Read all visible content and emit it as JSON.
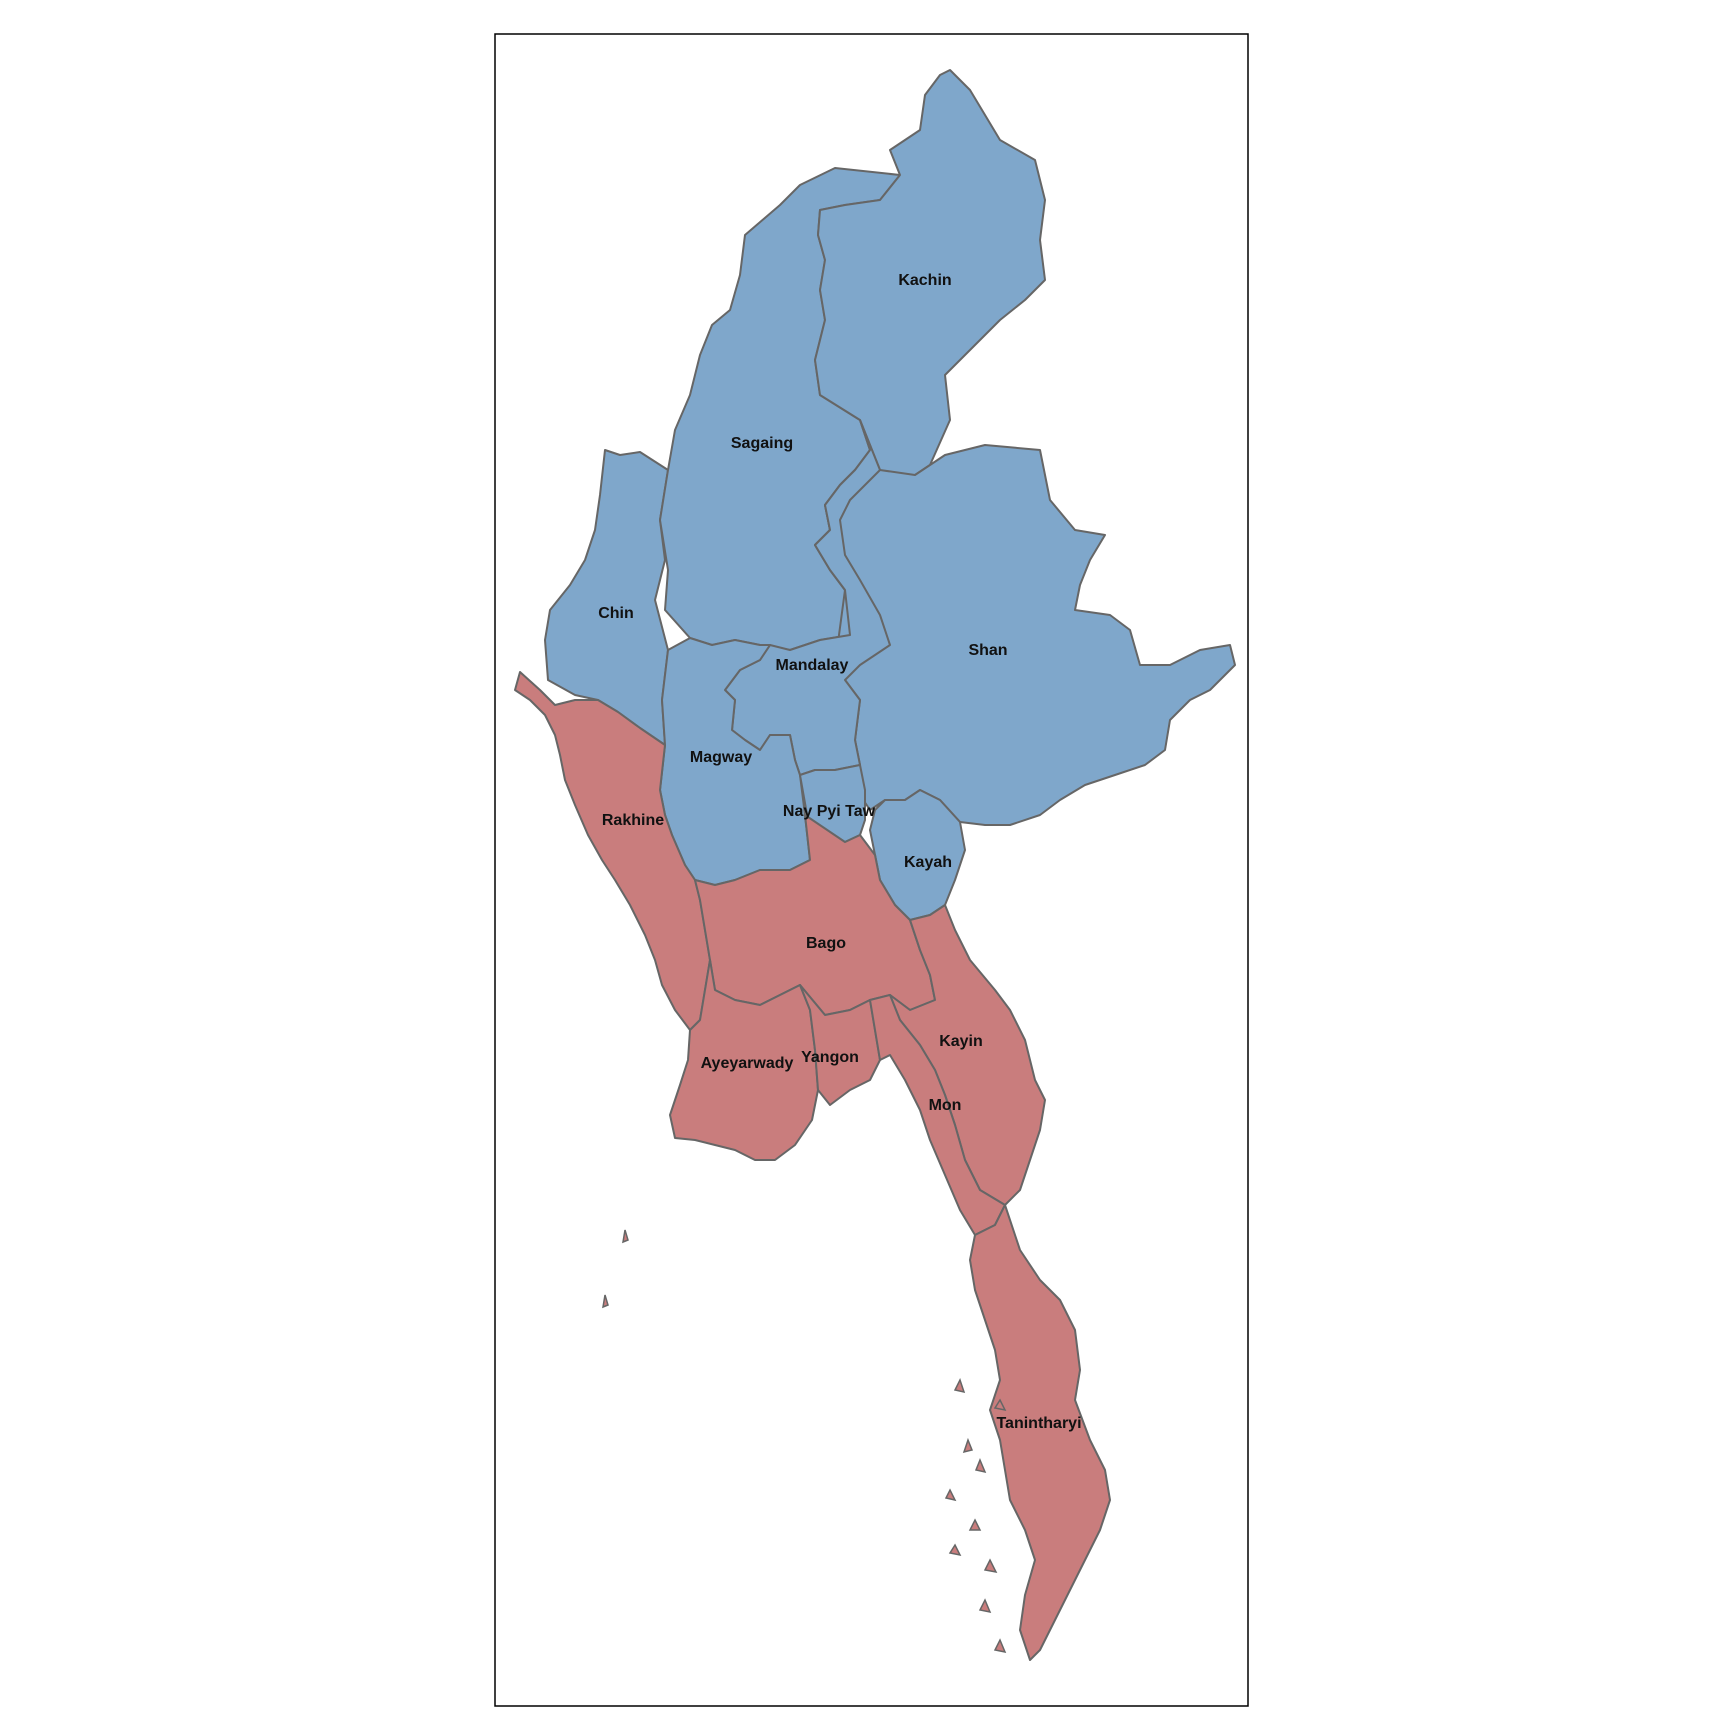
{
  "map": {
    "border_color": "#666666",
    "frame_color": "#000000",
    "group_colors": {
      "north": "#7fa7cb",
      "south": "#c97d7d"
    },
    "regions": [
      {
        "id": "kachin",
        "name": "Kachin",
        "group": "north"
      },
      {
        "id": "sagaing",
        "name": "Sagaing",
        "group": "north"
      },
      {
        "id": "chin",
        "name": "Chin",
        "group": "north"
      },
      {
        "id": "shan",
        "name": "Shan",
        "group": "north"
      },
      {
        "id": "mandalay",
        "name": "Mandalay",
        "group": "north"
      },
      {
        "id": "magway",
        "name": "Magway",
        "group": "north"
      },
      {
        "id": "nay-pyi-taw",
        "name": "Nay Pyi Taw",
        "group": "north"
      },
      {
        "id": "kayah",
        "name": "Kayah",
        "group": "north"
      },
      {
        "id": "rakhine",
        "name": "Rakhine",
        "group": "south"
      },
      {
        "id": "bago",
        "name": "Bago",
        "group": "south"
      },
      {
        "id": "kayin",
        "name": "Kayin",
        "group": "south"
      },
      {
        "id": "ayeyarwady",
        "name": "Ayeyarwady",
        "group": "south"
      },
      {
        "id": "yangon",
        "name": "Yangon",
        "group": "south"
      },
      {
        "id": "mon",
        "name": "Mon",
        "group": "south"
      },
      {
        "id": "tanintharyi",
        "name": "Tanintharyi",
        "group": "south"
      }
    ]
  }
}
